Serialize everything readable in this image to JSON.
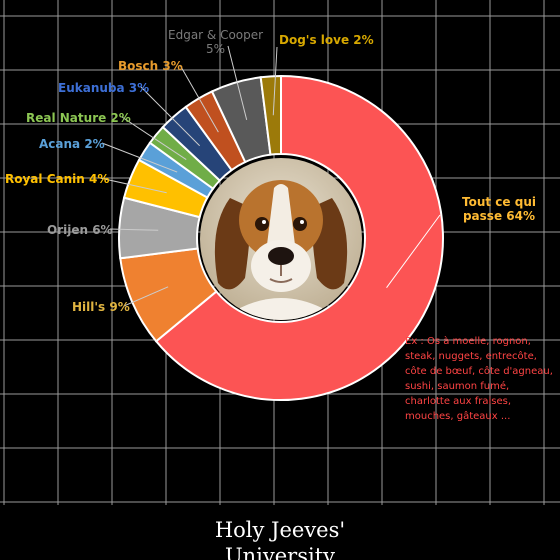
{
  "chart_data": {
    "type": "donut",
    "slices": [
      {
        "label": "Tout ce qui passe",
        "value": 64,
        "display": "64%",
        "color": "#fc5454",
        "text_color": "#ffbb33"
      },
      {
        "label": "Hill's",
        "value": 9,
        "display": "9%",
        "color": "#ef8130",
        "text_color": "#e0b441"
      },
      {
        "label": "Orijen",
        "value": 6,
        "display": "6%",
        "color": "#a6a6a6",
        "text_color": "#9a9a9a"
      },
      {
        "label": "Royal Canin",
        "value": 4,
        "display": "4%",
        "color": "#ffc000",
        "text_color": "#ffc000"
      },
      {
        "label": "Acana",
        "value": 2,
        "display": "2%",
        "color": "#5aa0d8",
        "text_color": "#5aa0d8"
      },
      {
        "label": "Real Nature",
        "value": 2,
        "display": "2%",
        "color": "#70ad47",
        "text_color": "#8cc653"
      },
      {
        "label": "Eukanuba",
        "value": 3,
        "display": "3%",
        "color": "#264478",
        "text_color": "#3d6fd6"
      },
      {
        "label": "Bosch",
        "value": 3,
        "display": "3%",
        "color": "#c0501f",
        "text_color": "#e69a2c"
      },
      {
        "label": "Edgar & Cooper",
        "value": 5,
        "display": "5%",
        "color": "#595959",
        "text_color": "#7a7a7a"
      },
      {
        "label": "Dog's love",
        "value": 2,
        "display": "2%",
        "color": "#9c7a0a",
        "text_color": "#d7a800"
      }
    ],
    "annotation": "Ex : Os à moelle, rognon, steak, nuggets, entrecôte, côte de bœuf, côte d'agneau, sushi, saumon fumé, charlotte aux fraises, mouches, gâteaux ...",
    "center_image": "beagle-dog-photo"
  },
  "footer": {
    "line1": "Holy Jeeves'",
    "line2": "University"
  }
}
